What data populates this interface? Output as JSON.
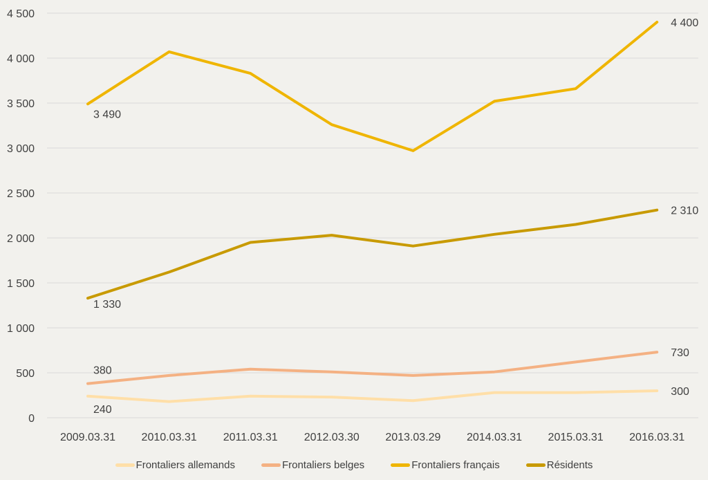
{
  "chart_data": {
    "type": "line",
    "title": "",
    "xlabel": "",
    "ylabel": "",
    "categories": [
      "2009.03.31",
      "2010.03.31",
      "2011.03.31",
      "2012.03.30",
      "2013.03.29",
      "2014.03.31",
      "2015.03.31",
      "2016.03.31"
    ],
    "ylim": [
      0,
      4500
    ],
    "yticks": [
      0,
      500,
      1000,
      1500,
      2000,
      2500,
      3000,
      3500,
      4000,
      4500
    ],
    "ytick_labels": [
      "0",
      "500",
      "1 000",
      "1 500",
      "2 000",
      "2 500",
      "3 000",
      "3 500",
      "4 000",
      "4 500"
    ],
    "grid": true,
    "legend_position": "bottom",
    "series": [
      {
        "name": "Frontaliers allemands",
        "color": "#FFDFA8",
        "values": [
          240,
          180,
          240,
          230,
          190,
          280,
          280,
          300
        ],
        "labels": [
          "240",
          "300"
        ]
      },
      {
        "name": "Frontaliers belges",
        "color": "#F4B183",
        "values": [
          380,
          470,
          540,
          510,
          470,
          510,
          620,
          730
        ],
        "labels": [
          "380",
          "730"
        ]
      },
      {
        "name": "Frontaliers français",
        "color": "#EFB500",
        "values": [
          3490,
          4070,
          3830,
          3260,
          2970,
          3520,
          3660,
          4400
        ],
        "labels": [
          "3 490",
          "4 400"
        ]
      },
      {
        "name": "Résidents",
        "color": "#C89A00",
        "values": [
          1330,
          1620,
          1950,
          2030,
          1910,
          2040,
          2150,
          2310
        ],
        "labels": [
          "1 330",
          "2 310"
        ]
      }
    ]
  }
}
